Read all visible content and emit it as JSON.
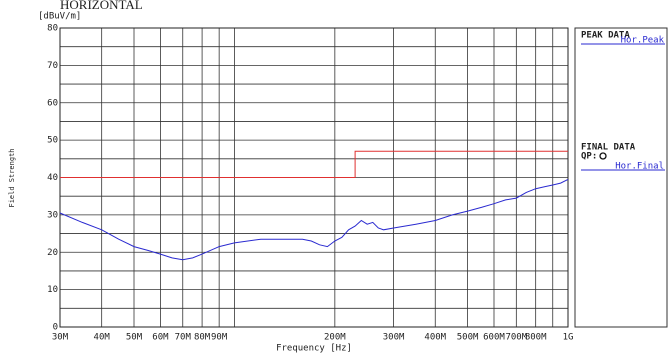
{
  "chart_data": {
    "type": "line",
    "title": "HORIZONTAL",
    "y_unit": "[dBuV/m]",
    "ylabel": "Field Strength",
    "xlabel": "Frequency [Hz]",
    "log_x": true,
    "grid": true,
    "xlim": [
      30000000,
      1000000000
    ],
    "ylim": [
      0,
      80
    ],
    "xticks": [
      {
        "value": 30000000,
        "label": "30M"
      },
      {
        "value": 40000000,
        "label": "40M"
      },
      {
        "value": 50000000,
        "label": "50M"
      },
      {
        "value": 60000000,
        "label": "60M"
      },
      {
        "value": 70000000,
        "label": "70M"
      },
      {
        "value": 80000000,
        "label": "80M"
      },
      {
        "value": 90000000,
        "label": "90M"
      },
      {
        "value": 100000000,
        "label": null
      },
      {
        "value": 200000000,
        "label": "200M"
      },
      {
        "value": 300000000,
        "label": "300M"
      },
      {
        "value": 400000000,
        "label": "400M"
      },
      {
        "value": 500000000,
        "label": "500M"
      },
      {
        "value": 600000000,
        "label": "600M"
      },
      {
        "value": 700000000,
        "label": "700M"
      },
      {
        "value": 800000000,
        "label": "800M"
      },
      {
        "value": 900000000,
        "label": null
      },
      {
        "value": 1000000000,
        "label": "1G"
      }
    ],
    "yticks": [
      0,
      {
        "value": 5,
        "label": null
      },
      10,
      {
        "value": 15,
        "label": null
      },
      20,
      {
        "value": 25,
        "label": null
      },
      30,
      {
        "value": 35,
        "label": null
      },
      40,
      {
        "value": 45,
        "label": null
      },
      50,
      {
        "value": 55,
        "label": null
      },
      60,
      {
        "value": 65,
        "label": null
      },
      70,
      {
        "value": 75,
        "label": null
      },
      80
    ],
    "series": [
      {
        "name": "Hor.Peak",
        "color": "#2a2ad0",
        "x": [
          30000000,
          35000000,
          40000000,
          45000000,
          50000000,
          55000000,
          60000000,
          65000000,
          70000000,
          75000000,
          80000000,
          90000000,
          100000000,
          120000000,
          140000000,
          160000000,
          170000000,
          180000000,
          190000000,
          200000000,
          210000000,
          220000000,
          230000000,
          240000000,
          250000000,
          260000000,
          270000000,
          280000000,
          300000000,
          350000000,
          400000000,
          450000000,
          500000000,
          550000000,
          600000000,
          650000000,
          700000000,
          750000000,
          800000000,
          850000000,
          900000000,
          950000000,
          1000000000
        ],
        "values": [
          30.5,
          28,
          26,
          23.5,
          21.5,
          20.5,
          19.5,
          18.5,
          18,
          18.5,
          19.5,
          21.5,
          22.5,
          23.5,
          23.5,
          23.5,
          23,
          22,
          21.5,
          23,
          24,
          26,
          27,
          28.5,
          27.5,
          28,
          26.5,
          26,
          26.5,
          27.5,
          28.5,
          30,
          31,
          32,
          33,
          34,
          34.5,
          36,
          37,
          37.5,
          38,
          38.5,
          39.5
        ]
      }
    ],
    "limit_line": {
      "color": "#e03030",
      "x": [
        30000000,
        230000000,
        230000000,
        1000000000
      ],
      "values": [
        40,
        40,
        47,
        47
      ]
    },
    "legend": {
      "peak_header": "PEAK DATA",
      "final_header": "FINAL DATA",
      "final_marker": "QP:",
      "final_name": "Hor.Final",
      "final_color": "#2a2ad0"
    }
  }
}
